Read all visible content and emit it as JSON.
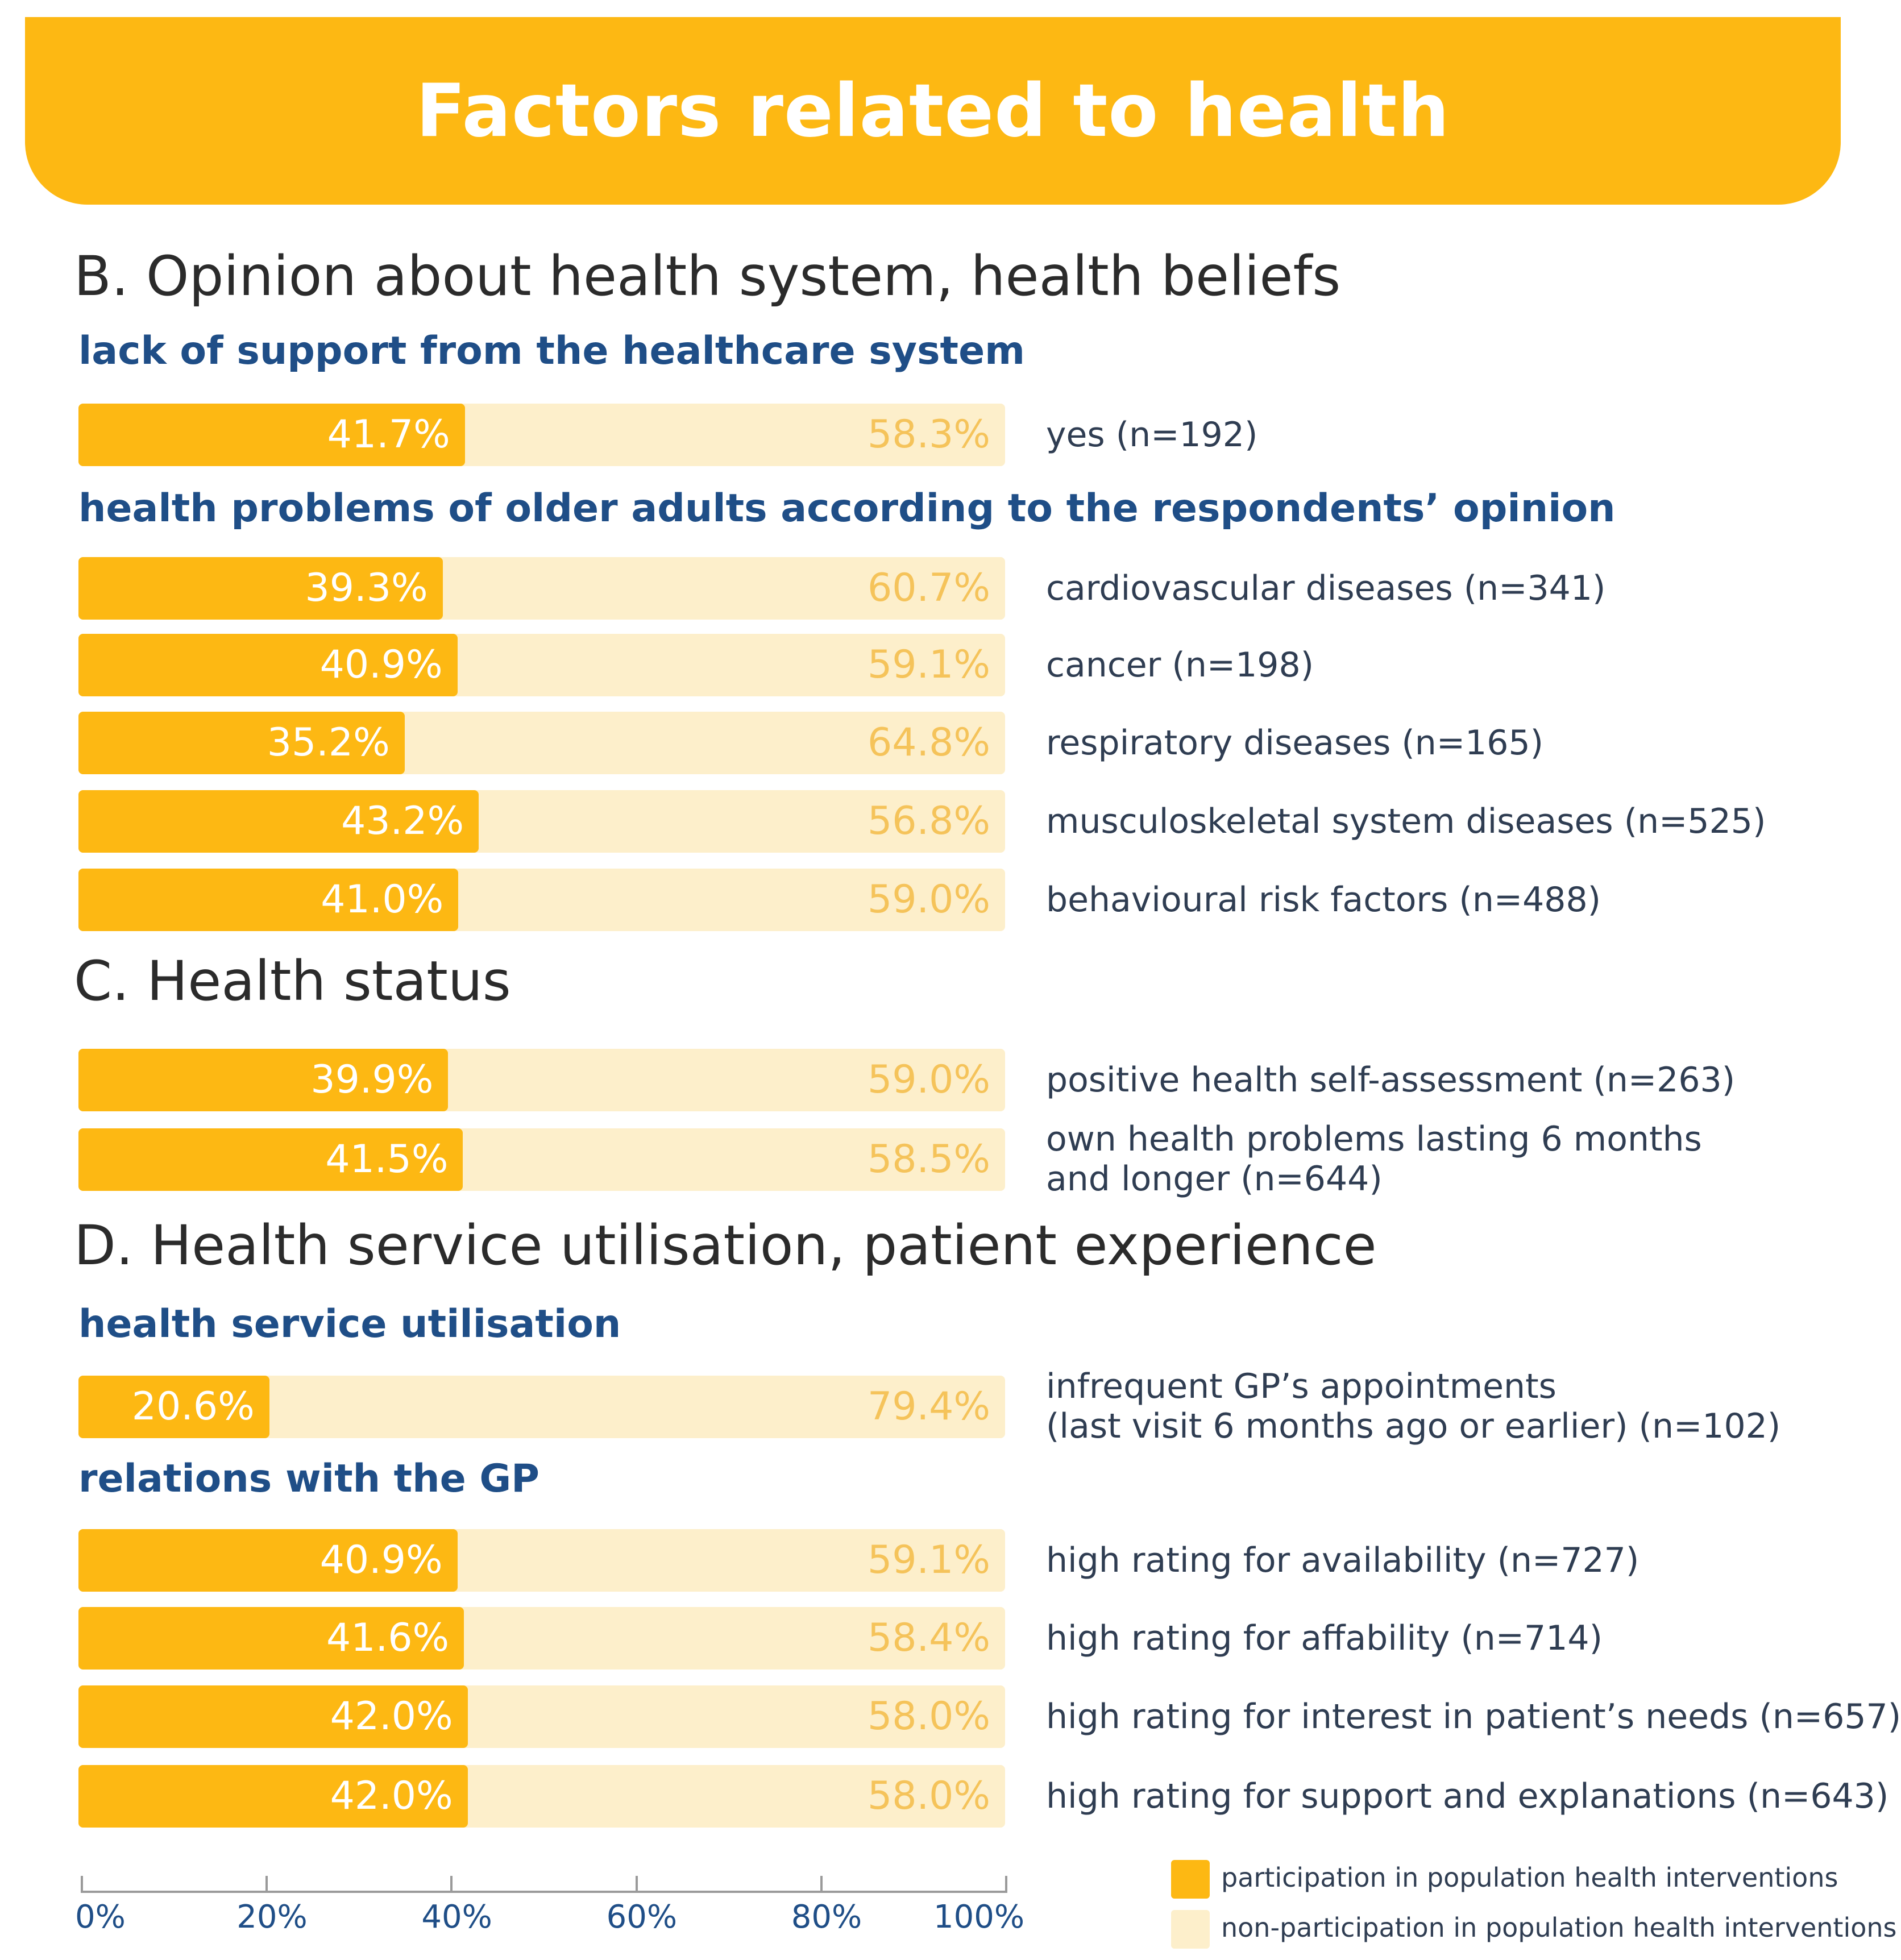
{
  "banner": {
    "title": "Factors related to health"
  },
  "colors": {
    "participation": "#FDB813",
    "non_participation": "#FDEFCB",
    "group_title": "#1f4e87",
    "section_title": "#2b2b2b"
  },
  "sections": {
    "b": {
      "title": "B. Opinion about health system, health beliefs"
    },
    "c": {
      "title": "C. Health status"
    },
    "d": {
      "title": "D. Health service utilisation, patient experience"
    }
  },
  "groups": {
    "support": {
      "title": "lack of support from the healthcare system"
    },
    "problems": {
      "title": "health problems of older adults according to the respondents’ opinion"
    },
    "utilisation": {
      "title": "health service utilisation"
    },
    "gp": {
      "title": "relations with the GP"
    }
  },
  "legend": {
    "participation": "participation in population health interventions",
    "non_participation": "non-participation in population health interventions"
  },
  "chart_data": {
    "type": "bar",
    "orientation": "horizontal",
    "stacked": true,
    "xlim": [
      0,
      100
    ],
    "x_ticks": [
      "0%",
      "20%",
      "40%",
      "60%",
      "80%",
      "100%"
    ],
    "series_names": [
      "participation in population health interventions",
      "non-participation in population health interventions"
    ],
    "rows": [
      {
        "label": "yes (n=192)",
        "participation": 41.7,
        "participation_label": "41.7%",
        "non_participation": 58.3,
        "non_participation_label": "58.3%"
      },
      {
        "label": "cardiovascular diseases (n=341)",
        "participation": 39.3,
        "participation_label": "39.3%",
        "non_participation": 60.7,
        "non_participation_label": "60.7%"
      },
      {
        "label": "cancer (n=198)",
        "participation": 40.9,
        "participation_label": "40.9%",
        "non_participation": 59.1,
        "non_participation_label": "59.1%"
      },
      {
        "label": "respiratory diseases (n=165)",
        "participation": 35.2,
        "participation_label": "35.2%",
        "non_participation": 64.8,
        "non_participation_label": "64.8%"
      },
      {
        "label": "musculoskeletal system diseases (n=525)",
        "participation": 43.2,
        "participation_label": "43.2%",
        "non_participation": 56.8,
        "non_participation_label": "56.8%"
      },
      {
        "label": "behavioural risk factors (n=488)",
        "participation": 41.0,
        "participation_label": "41.0%",
        "non_participation": 59.0,
        "non_participation_label": "59.0%"
      },
      {
        "label": "positive health self-assessment (n=263)",
        "participation": 39.9,
        "participation_label": "39.9%",
        "non_participation": 59.0,
        "non_participation_label": "59.0%"
      },
      {
        "label": "own health problems lasting 6 months\nand longer (n=644)",
        "participation": 41.5,
        "participation_label": "41.5%",
        "non_participation": 58.5,
        "non_participation_label": "58.5%"
      },
      {
        "label": "infrequent GP’s appointments\n(last visit 6 months ago or earlier) (n=102)",
        "participation": 20.6,
        "participation_label": "20.6%",
        "non_participation": 79.4,
        "non_participation_label": "79.4%"
      },
      {
        "label": "high rating for availability (n=727)",
        "participation": 40.9,
        "participation_label": "40.9%",
        "non_participation": 59.1,
        "non_participation_label": "59.1%"
      },
      {
        "label": "high rating for affability (n=714)",
        "participation": 41.6,
        "participation_label": "41.6%",
        "non_participation": 58.4,
        "non_participation_label": "58.4%"
      },
      {
        "label": "high rating for interest in patient’s needs (n=657)",
        "participation": 42.0,
        "participation_label": "42.0%",
        "non_participation": 58.0,
        "non_participation_label": "58.0%"
      },
      {
        "label": "high rating for support and explanations (n=643)",
        "participation": 42.0,
        "participation_label": "42.0%",
        "non_participation": 58.0,
        "non_participation_label": "58.0%"
      }
    ]
  }
}
